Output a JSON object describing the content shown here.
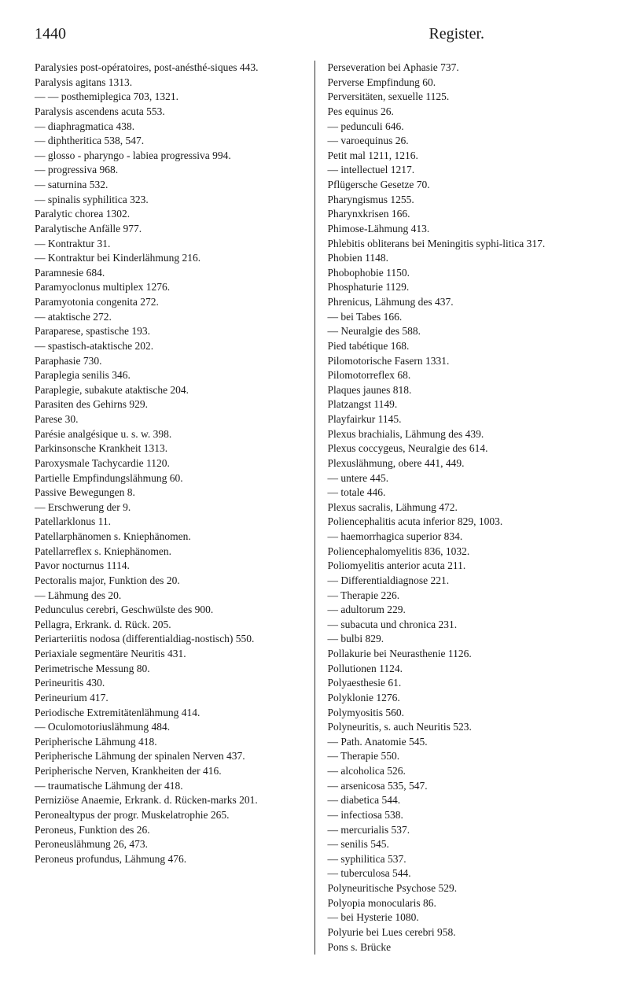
{
  "page_number": "1440",
  "header_title": "Register.",
  "font": {
    "family": "serif",
    "body_size_pt": 10,
    "header_size_pt": 15,
    "color": "#1a1a1a"
  },
  "background_color": "#ffffff",
  "divider_color": "#333333",
  "left_column": [
    "Paralysies post-opératoires, post-anésthé-siques 443.",
    "Paralysis agitans 1313.",
    "— — posthemiplegica 703, 1321.",
    "Paralysis ascendens acuta 553.",
    "— diaphragmatica 438.",
    "— diphtheritica 538, 547.",
    "— glosso - pharyngo - labiea progressiva 994.",
    "— progressiva 968.",
    "— saturnina 532.",
    "— spinalis syphilitica 323.",
    "Paralytic chorea 1302.",
    "Paralytische Anfälle 977.",
    "— Kontraktur 31.",
    "— Kontraktur bei Kinderlähmung 216.",
    "Paramnesie 684.",
    "Paramyoclonus multiplex 1276.",
    "Paramyotonia congenita 272.",
    "— ataktische 272.",
    "Paraparese, spastische 193.",
    "— spastisch-ataktische 202.",
    "Paraphasie 730.",
    "Paraplegia senilis 346.",
    "Paraplegie, subakute ataktische 204.",
    "Parasiten des Gehirns 929.",
    "Parese 30.",
    "Parésie analgésique u. s. w. 398.",
    "Parkinsonsche Krankheit 1313.",
    "Paroxysmale Tachycardie 1120.",
    "Partielle Empfindungslähmung 60.",
    "Passive Bewegungen 8.",
    "— Erschwerung der 9.",
    "Patellarklonus 11.",
    "Patellarphänomen s. Kniephänomen.",
    "Patellarreflex s. Kniephänomen.",
    "Pavor nocturnus 1114.",
    "Pectoralis major, Funktion des 20.",
    "— Lähmung des 20.",
    "Pedunculus cerebri, Geschwülste des 900.",
    "Pellagra, Erkrank. d. Rück. 205.",
    "Periarteriitis nodosa (differentialdiag-nostisch) 550.",
    "Periaxiale segmentäre Neuritis 431.",
    "Perimetrische Messung 80.",
    "Perineuritis 430.",
    "Perineurium 417.",
    "Periodische Extremitätenlähmung 414.",
    "— Oculomotoriuslähmung 484.",
    "Peripherische Lähmung 418.",
    "Peripherische Lähmung der spinalen Nerven 437.",
    "Peripherische Nerven, Krankheiten der 416.",
    "— traumatische Lähmung der 418.",
    "Perniziöse Anaemie, Erkrank. d. Rücken-marks 201.",
    "Peronealtypus der progr. Muskelatrophie 265.",
    "Peroneus, Funktion des 26.",
    "Peroneuslähmung 26, 473.",
    "Peroneus profundus, Lähmung 476."
  ],
  "right_column": [
    "Perseveration bei Aphasie 737.",
    "Perverse Empfindung 60.",
    "Perversitäten, sexuelle 1125.",
    "Pes equinus 26.",
    "— pedunculi 646.",
    "— varoequinus 26.",
    "Petit mal 1211, 1216.",
    "— intellectuel 1217.",
    "Pflügersche Gesetze 70.",
    "Pharyngismus 1255.",
    "Pharynxkrisen 166.",
    "Phimose-Lähmung 413.",
    "Phlebitis obliterans bei Meningitis syphi-litica 317.",
    "Phobien 1148.",
    "Phobophobie 1150.",
    "Phosphaturie 1129.",
    "Phrenicus, Lähmung des 437.",
    "— bei Tabes 166.",
    "— Neuralgie des 588.",
    "Pied tabétique 168.",
    "Pilomotorische Fasern 1331.",
    "Pilomotorreflex 68.",
    "Plaques jaunes 818.",
    "Platzangst 1149.",
    "Playfairkur 1145.",
    "Plexus brachialis, Lähmung des 439.",
    "Plexus coccygeus, Neuralgie des 614.",
    "Plexuslähmung, obere 441, 449.",
    "— untere 445.",
    "— totale 446.",
    "Plexus sacralis, Lähmung 472.",
    "Poliencephalitis acuta inferior 829, 1003.",
    "— haemorrhagica superior 834.",
    "Poliencephalomyelitis 836, 1032.",
    "Poliomyelitis anterior acuta 211.",
    "— Differentialdiagnose 221.",
    "— Therapie 226.",
    "— adultorum 229.",
    "— subacuta und chronica 231.",
    "— bulbi 829.",
    "Pollakurie bei Neurasthenie 1126.",
    "Pollutionen 1124.",
    "Polyaesthesie 61.",
    "Polyklonie 1276.",
    "Polymyositis 560.",
    "Polyneuritis, s. auch Neuritis 523.",
    "— Path. Anatomie 545.",
    "— Therapie 550.",
    "— alcoholica 526.",
    "— arsenicosa 535, 547.",
    "— diabetica 544.",
    "— infectiosa 538.",
    "— mercurialis 537.",
    "— senilis 545.",
    "— syphilitica 537.",
    "— tuberculosa 544.",
    "Polyneuritische Psychose 529.",
    "Polyopia monocularis 86.",
    "— bei Hysterie 1080.",
    "Polyurie bei Lues cerebri 958.",
    "Pons s. Brücke"
  ]
}
